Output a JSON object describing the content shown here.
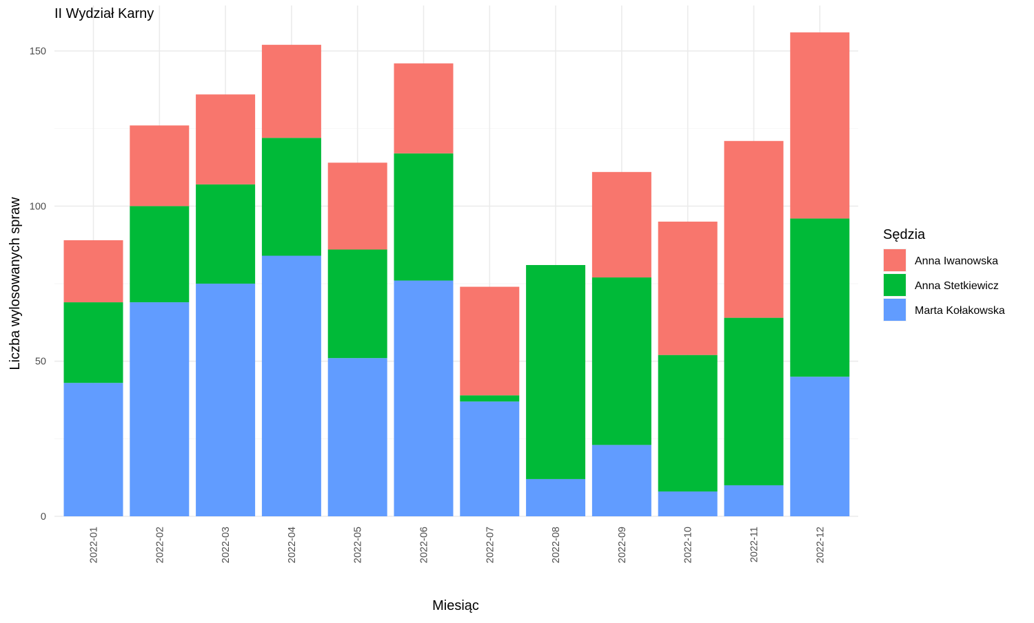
{
  "chart_data": {
    "type": "bar",
    "stacked": true,
    "title": "II Wydział Karny",
    "xlabel": "Miesiąc",
    "ylabel": "Liczba wylosowanych spraw",
    "ylim": [
      0,
      160
    ],
    "yticks": [
      0,
      50,
      100,
      150
    ],
    "categories": [
      "2022-01",
      "2022-02",
      "2022-03",
      "2022-04",
      "2022-05",
      "2022-06",
      "2022-07",
      "2022-08",
      "2022-09",
      "2022-10",
      "2022-11",
      "2022-12"
    ],
    "series": [
      {
        "name": "Marta Kołakowska",
        "color": "#619CFF",
        "values": [
          43,
          69,
          75,
          84,
          51,
          76,
          37,
          12,
          23,
          8,
          10,
          45
        ]
      },
      {
        "name": "Anna Stetkiewicz",
        "color": "#00BA38",
        "values": [
          26,
          31,
          32,
          38,
          35,
          41,
          2,
          69,
          54,
          44,
          54,
          51
        ]
      },
      {
        "name": "Anna Iwanowska",
        "color": "#F8766D",
        "values": [
          20,
          26,
          29,
          30,
          28,
          29,
          35,
          0,
          34,
          43,
          57,
          60
        ]
      }
    ],
    "legend": {
      "title": "Sędzia",
      "position": "right",
      "order": [
        "Anna Iwanowska",
        "Anna Stetkiewicz",
        "Marta Kołakowska"
      ]
    },
    "grid": true
  }
}
